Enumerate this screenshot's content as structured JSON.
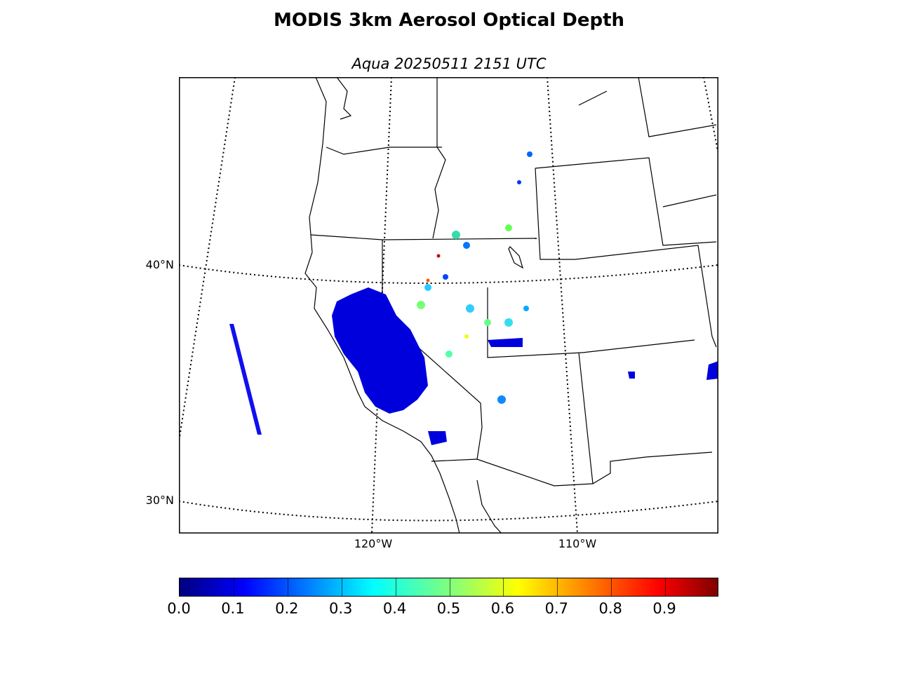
{
  "title": "MODIS 3km Aerosol Optical Depth",
  "subtitle": "Aqua 20250511 2151 UTC",
  "map": {
    "latitude_labels": [
      {
        "value": 40,
        "text": "40°N"
      },
      {
        "value": 30,
        "text": "30°N"
      }
    ],
    "longitude_labels": [
      {
        "value": -120,
        "text": "120°W"
      },
      {
        "value": -110,
        "text": "110°W"
      }
    ],
    "gridline_style": "dotted",
    "data_colormap": "jet"
  },
  "colorbar": {
    "min": 0.0,
    "max": 1.0,
    "ticks": [
      "0.0",
      "0.1",
      "0.2",
      "0.3",
      "0.4",
      "0.5",
      "0.6",
      "0.7",
      "0.8",
      "0.9"
    ],
    "colors": [
      "#00007f",
      "#0000ff",
      "#007fff",
      "#00ffff",
      "#7fff7f",
      "#ffff00",
      "#ff7f00",
      "#ff0000",
      "#7f0000"
    ]
  }
}
